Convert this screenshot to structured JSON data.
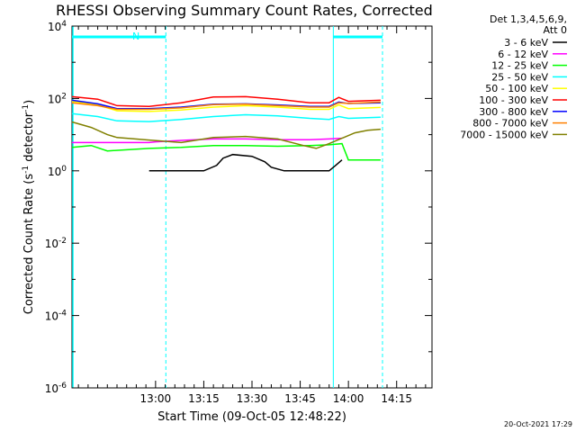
{
  "chart_data": {
    "type": "line",
    "title": "RHESSI Observing Summary Count Rates, Corrected",
    "xlabel": "Start Time (09-Oct-05 12:48:22)",
    "ylabel_main": "Corrected Count Rate (s",
    "ylabel_sup1": "-1",
    "ylabel_mid": " detector",
    "ylabel_sup2": "-1",
    "ylabel_end": ")",
    "yscale": "log",
    "ylim_exp": [
      -6,
      4
    ],
    "xlim_min": [
      -14,
      98
    ],
    "x_unit": "minutes after 12:48:22",
    "y_ticks": [
      {
        "exp": 4,
        "label": "10",
        "sup": "4"
      },
      {
        "exp": 2,
        "label": "10",
        "sup": "2"
      },
      {
        "exp": 0,
        "label": "10",
        "sup": "0"
      },
      {
        "exp": -2,
        "label": "10",
        "sup": "-2"
      },
      {
        "exp": -4,
        "label": "10",
        "sup": "-4"
      },
      {
        "exp": -6,
        "label": "10",
        "sup": "-6"
      }
    ],
    "x_ticks": [
      {
        "min": 12,
        "label": "13:00"
      },
      {
        "min": 27,
        "label": "13:15"
      },
      {
        "min": 42,
        "label": "13:30"
      },
      {
        "min": 57,
        "label": "13:45"
      },
      {
        "min": 72,
        "label": "14:00"
      },
      {
        "min": 87,
        "label": "14:15"
      }
    ],
    "legend_header": [
      "Det 1,3,4,5,6,9,",
      "Att 0"
    ],
    "legend_position": "right-outside",
    "annotation": {
      "text": "N"
    },
    "night_intervals": [
      [
        -14,
        15.2
      ],
      [
        67.3,
        82.6
      ]
    ],
    "series": [
      {
        "name": "3 - 6 keV",
        "color": "#000000",
        "points": [
          [
            10,
            0.0
          ],
          [
            20,
            0.0
          ],
          [
            27,
            0.0
          ],
          [
            31,
            0.15
          ],
          [
            33,
            0.35
          ],
          [
            36,
            0.45
          ],
          [
            42,
            0.4
          ],
          [
            46,
            0.25
          ],
          [
            48,
            0.1
          ],
          [
            52,
            0.0
          ],
          [
            60,
            0.0
          ],
          [
            66,
            0.0
          ],
          [
            68,
            0.15
          ],
          [
            70,
            0.3
          ]
        ]
      },
      {
        "name": "6 - 12 keV",
        "color": "#ff00ff",
        "points": [
          [
            -14,
            0.78
          ],
          [
            10,
            0.78
          ],
          [
            12,
            0.8
          ],
          [
            20,
            0.84
          ],
          [
            30,
            0.88
          ],
          [
            40,
            0.88
          ],
          [
            50,
            0.86
          ],
          [
            60,
            0.86
          ],
          [
            66,
            0.88
          ],
          [
            70,
            0.9
          ]
        ]
      },
      {
        "name": "12 - 25 keV",
        "color": "#00ff00",
        "points": [
          [
            -14,
            0.65
          ],
          [
            -8,
            0.7
          ],
          [
            -3,
            0.55
          ],
          [
            10,
            0.62
          ],
          [
            20,
            0.65
          ],
          [
            30,
            0.7
          ],
          [
            40,
            0.7
          ],
          [
            50,
            0.68
          ],
          [
            60,
            0.7
          ],
          [
            66,
            0.72
          ],
          [
            70,
            0.75
          ],
          [
            72,
            0.3
          ],
          [
            82,
            0.3
          ]
        ]
      },
      {
        "name": "25 - 50 keV",
        "color": "#00ffff",
        "points": [
          [
            -14,
            1.58
          ],
          [
            -6,
            1.5
          ],
          [
            0,
            1.38
          ],
          [
            10,
            1.36
          ],
          [
            20,
            1.42
          ],
          [
            30,
            1.5
          ],
          [
            40,
            1.55
          ],
          [
            50,
            1.52
          ],
          [
            60,
            1.45
          ],
          [
            66,
            1.42
          ],
          [
            69,
            1.5
          ],
          [
            72,
            1.45
          ],
          [
            82,
            1.48
          ]
        ]
      },
      {
        "name": "50 - 100 keV",
        "color": "#ffff00",
        "points": [
          [
            -14,
            1.92
          ],
          [
            -6,
            1.82
          ],
          [
            0,
            1.66
          ],
          [
            10,
            1.64
          ],
          [
            20,
            1.68
          ],
          [
            30,
            1.76
          ],
          [
            40,
            1.8
          ],
          [
            50,
            1.76
          ],
          [
            60,
            1.7
          ],
          [
            66,
            1.7
          ],
          [
            69,
            1.82
          ],
          [
            72,
            1.72
          ],
          [
            82,
            1.75
          ]
        ]
      },
      {
        "name": "100 - 300 keV",
        "color": "#ff0000",
        "points": [
          [
            -14,
            2.05
          ],
          [
            -6,
            1.98
          ],
          [
            0,
            1.8
          ],
          [
            10,
            1.78
          ],
          [
            20,
            1.88
          ],
          [
            30,
            2.04
          ],
          [
            40,
            2.05
          ],
          [
            50,
            1.98
          ],
          [
            60,
            1.88
          ],
          [
            66,
            1.88
          ],
          [
            69,
            2.03
          ],
          [
            72,
            1.92
          ],
          [
            82,
            1.95
          ]
        ]
      },
      {
        "name": "300 - 800 keV",
        "color": "#0000ff",
        "points": [
          [
            -14,
            1.95
          ],
          [
            -6,
            1.85
          ],
          [
            0,
            1.72
          ],
          [
            10,
            1.72
          ],
          [
            20,
            1.76
          ],
          [
            30,
            1.84
          ],
          [
            40,
            1.85
          ],
          [
            50,
            1.82
          ],
          [
            60,
            1.78
          ],
          [
            66,
            1.78
          ],
          [
            69,
            1.9
          ],
          [
            72,
            1.86
          ],
          [
            82,
            1.88
          ]
        ]
      },
      {
        "name": "800 - 7000 keV",
        "color": "#ff8000",
        "points": [
          [
            -14,
            1.88
          ],
          [
            -6,
            1.8
          ],
          [
            0,
            1.7
          ],
          [
            10,
            1.7
          ],
          [
            20,
            1.74
          ],
          [
            30,
            1.83
          ],
          [
            40,
            1.84
          ],
          [
            50,
            1.8
          ],
          [
            60,
            1.76
          ],
          [
            66,
            1.76
          ],
          [
            69,
            1.88
          ],
          [
            72,
            1.86
          ],
          [
            82,
            1.9
          ]
        ]
      },
      {
        "name": "7000 - 15000 keV",
        "color": "#808000",
        "points": [
          [
            -14,
            1.35
          ],
          [
            -8,
            1.2
          ],
          [
            -3,
            1.0
          ],
          [
            0,
            0.92
          ],
          [
            10,
            0.85
          ],
          [
            20,
            0.78
          ],
          [
            30,
            0.92
          ],
          [
            40,
            0.95
          ],
          [
            50,
            0.88
          ],
          [
            58,
            0.7
          ],
          [
            62,
            0.62
          ],
          [
            66,
            0.75
          ],
          [
            70,
            0.9
          ],
          [
            74,
            1.05
          ],
          [
            78,
            1.12
          ],
          [
            82,
            1.15
          ]
        ]
      }
    ],
    "grid": false
  },
  "footer": {
    "timestamp": "20-Oct-2021 17:29"
  }
}
